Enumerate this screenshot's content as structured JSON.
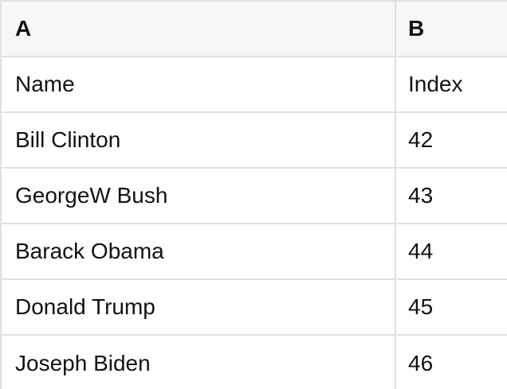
{
  "table": {
    "columns": [
      {
        "id": "A",
        "label": "A"
      },
      {
        "id": "B",
        "label": "B"
      }
    ],
    "rows": [
      [
        "Name",
        "Index"
      ],
      [
        "Bill Clinton",
        "42"
      ],
      [
        "GeorgeW Bush",
        "43"
      ],
      [
        "Barack Obama",
        "44"
      ],
      [
        "Donald Trump",
        "45"
      ],
      [
        "Joseph Biden",
        "46"
      ]
    ]
  },
  "colors": {
    "header_bg": "#f7f7f7",
    "row_bg": "#ffffff",
    "border": "#e1e1e1",
    "text": "#121212"
  }
}
